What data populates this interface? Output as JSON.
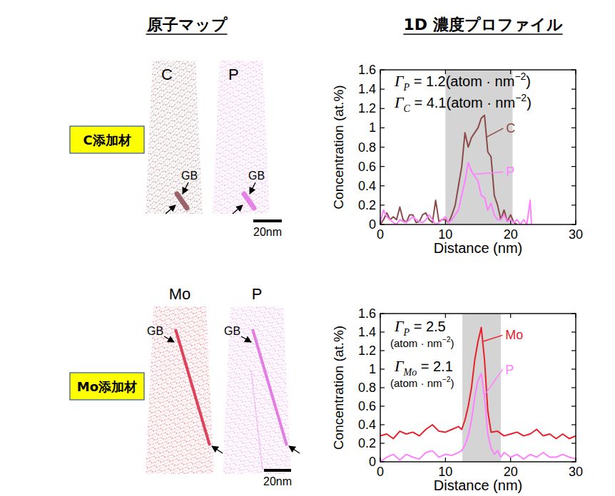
{
  "headers": {
    "atom_map": "原子マップ",
    "profile": "1D 濃度プロファイル"
  },
  "rows": [
    {
      "label": "C添加材",
      "maps": [
        {
          "element": "C",
          "color": "#8b4a52",
          "gb": "GB"
        },
        {
          "element": "P",
          "color": "#e070e0",
          "gb": "GB"
        }
      ],
      "scale_bar": "20nm"
    },
    {
      "label": "Mo添加材",
      "maps": [
        {
          "element": "Mo",
          "color": "#d9304a",
          "gb": "GB"
        },
        {
          "element": "P",
          "color": "#e070e0",
          "gb": "GB"
        }
      ],
      "scale_bar": "20nm"
    }
  ],
  "chart_data": [
    {
      "type": "line",
      "x_label": "Distance (nm)",
      "y_label": "Concentration (at.%)",
      "xlim": [
        0,
        30
      ],
      "ylim": [
        0,
        1.6
      ],
      "xticks": [
        0,
        10,
        20,
        30
      ],
      "yticks": [
        0,
        0.2,
        0.4,
        0.6,
        0.8,
        1,
        1.2,
        1.4,
        1.6
      ],
      "shaded_range": [
        10,
        20.3
      ],
      "annotations": [
        {
          "lines": [
            [
              {
                "sym": "Γ"
              },
              {
                "sub": "P"
              },
              {
                "t": " = "
              },
              {
                "value": 1.2
              },
              {
                "t": "(atom · nm"
              },
              {
                "sup": "−2"
              },
              {
                "t": ")"
              }
            ]
          ]
        },
        {
          "lines": [
            [
              {
                "sym": "Γ"
              },
              {
                "sub": "C"
              },
              {
                "t": " = "
              },
              {
                "value": 4.1
              },
              {
                "t": "(atom · nm"
              },
              {
                "sup": "−2"
              },
              {
                "t": ")"
              }
            ]
          ]
        }
      ],
      "series": [
        {
          "name": "C",
          "color": "#8b4a4a",
          "x": [
            0,
            0.5,
            1,
            1.5,
            2,
            2.5,
            3,
            3.5,
            4,
            4.5,
            5,
            5.5,
            6,
            6.5,
            7,
            7.5,
            8,
            8.5,
            9,
            9.5,
            10,
            10.5,
            11,
            11.5,
            12,
            12.5,
            13,
            13.5,
            14,
            14.5,
            15,
            15.5,
            16,
            16.5,
            17,
            17.5,
            18,
            18.5,
            19,
            19.5,
            20,
            20.5,
            21
          ],
          "values": [
            0,
            0.05,
            0.12,
            0.05,
            0.08,
            0.05,
            0.18,
            0.05,
            0.02,
            0.1,
            0.1,
            0.02,
            0.03,
            0.1,
            0.12,
            0.05,
            0.02,
            0.25,
            0.03,
            0.05,
            0.05,
            0.02,
            0.1,
            0.2,
            0.4,
            0.6,
            0.95,
            0.8,
            0.9,
            0.95,
            1.0,
            1.1,
            1.13,
            0.75,
            0.7,
            0.3,
            0.2,
            0.05,
            0.15,
            0.03,
            0.1,
            0.02,
            0
          ]
        },
        {
          "name": "P",
          "color": "#ff80ff",
          "x": [
            0,
            0.5,
            1,
            1.5,
            2,
            2.5,
            3,
            3.5,
            4,
            4.5,
            5,
            5.5,
            6,
            6.5,
            7,
            7.5,
            8,
            8.5,
            9,
            9.5,
            10,
            10.5,
            11,
            11.5,
            12,
            12.5,
            13,
            13.5,
            14,
            14.5,
            15,
            15.5,
            16,
            16.5,
            17,
            17.5,
            18,
            18.5,
            19,
            19.5,
            20,
            20.5,
            21,
            21.5,
            22,
            22.5,
            23,
            23.2
          ],
          "values": [
            0.02,
            0.15,
            0.08,
            0.05,
            0.02,
            0,
            0.05,
            0.03,
            0.02,
            0.05,
            0.08,
            0.05,
            0.03,
            0.02,
            0.05,
            0.1,
            0.05,
            0,
            0.02,
            0.05,
            0.08,
            0.02,
            0.05,
            0.1,
            0.15,
            0.3,
            0.45,
            0.64,
            0.55,
            0.5,
            0.45,
            0.3,
            0.28,
            0.15,
            0.22,
            0.1,
            0.05,
            0.05,
            0.1,
            0.03,
            0.05,
            0.02,
            0.05,
            0,
            0.05,
            0,
            0.25,
            0
          ]
        }
      ]
    },
    {
      "type": "line",
      "x_label": "Distance (nm)",
      "y_label": "Concentration (at.%)",
      "xlim": [
        0,
        30
      ],
      "ylim": [
        0,
        1.6
      ],
      "xticks": [
        0,
        10,
        20,
        30
      ],
      "yticks": [
        0,
        0.2,
        0.4,
        0.6,
        0.8,
        1,
        1.2,
        1.4,
        1.6
      ],
      "shaded_range": [
        12.6,
        18.5
      ],
      "annotations": [
        {
          "lines": [
            [
              {
                "sym": "Γ"
              },
              {
                "sub": "P"
              },
              {
                "t": " = "
              },
              {
                "value": 2.5
              }
            ],
            [
              {
                "t": "(atom · nm"
              },
              {
                "sup": "−2"
              },
              {
                "t": ")"
              }
            ]
          ]
        },
        {
          "lines": [
            [
              {
                "sym": "Γ"
              },
              {
                "sub": "Mo"
              },
              {
                "t": " = "
              },
              {
                "value": 2.1
              }
            ],
            [
              {
                "t": "(atom · nm"
              },
              {
                "sup": "−2"
              },
              {
                "t": ")"
              }
            ]
          ]
        }
      ],
      "series": [
        {
          "name": "Mo",
          "color": "#e8202a",
          "x": [
            0,
            1,
            2,
            3,
            4,
            5,
            6,
            7,
            8,
            9,
            10,
            11,
            12,
            12.5,
            13,
            13.5,
            14,
            14.5,
            15,
            15.5,
            16,
            16.5,
            17,
            18,
            19,
            20,
            21,
            22,
            23,
            24,
            25,
            26,
            27,
            28,
            29,
            30
          ],
          "values": [
            0.28,
            0.3,
            0.25,
            0.33,
            0.3,
            0.32,
            0.28,
            0.35,
            0.4,
            0.33,
            0.32,
            0.35,
            0.38,
            0.35,
            0.45,
            0.6,
            0.8,
            1.1,
            1.3,
            1.45,
            1.1,
            0.55,
            0.32,
            0.33,
            0.28,
            0.3,
            0.32,
            0.28,
            0.3,
            0.35,
            0.28,
            0.3,
            0.25,
            0.3,
            0.25,
            0.28
          ]
        },
        {
          "name": "P",
          "color": "#ff80ff",
          "x": [
            0,
            1,
            2,
            3,
            4,
            5,
            6,
            7,
            8,
            9,
            10,
            11,
            12,
            12.5,
            13,
            13.5,
            14,
            14.5,
            15,
            15.5,
            16,
            16.5,
            17,
            17.5,
            18,
            18.5,
            19,
            20,
            21,
            22,
            23,
            24,
            25,
            26,
            27,
            28,
            29,
            30
          ],
          "values": [
            0,
            0.05,
            0.08,
            0.02,
            0.08,
            0.05,
            0.03,
            0.1,
            0.12,
            0.05,
            0.08,
            0.07,
            0.1,
            0.12,
            0.18,
            0.28,
            0.45,
            0.7,
            0.88,
            0.95,
            0.7,
            0.3,
            0.15,
            0.08,
            0.12,
            0.05,
            0.1,
            0.05,
            0.08,
            0.03,
            0.08,
            0.05,
            0.1,
            0.05,
            0.05,
            0.08,
            0.05,
            0.03
          ]
        }
      ]
    }
  ]
}
